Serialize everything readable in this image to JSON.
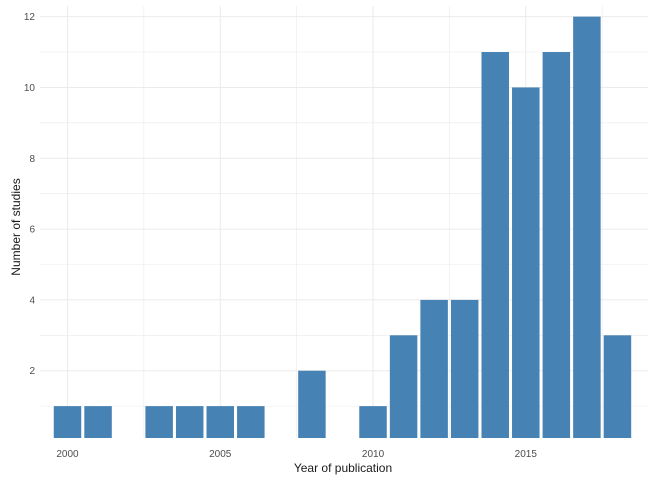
{
  "chart_data": {
    "type": "bar",
    "title": "",
    "xlabel": "Year of publication",
    "ylabel": "Number of studies",
    "x": [
      2000,
      2001,
      2003,
      2004,
      2005,
      2006,
      2008,
      2010,
      2011,
      2012,
      2013,
      2014,
      2015,
      2016,
      2017,
      2018
    ],
    "values": [
      1,
      1,
      1,
      1,
      1,
      1,
      2,
      1,
      3,
      4,
      4,
      11,
      10,
      11,
      12,
      3
    ],
    "xlim": [
      1999.1,
      2019.0
    ],
    "ylim": [
      0.1,
      12.3
    ],
    "x_ticks": [
      2000,
      2005,
      2010,
      2015
    ],
    "y_ticks": [
      2,
      4,
      6,
      8,
      10,
      12
    ],
    "grid": true,
    "legend": "none",
    "bar_color": "#4682B4",
    "grid_color": "#ebebeb"
  }
}
